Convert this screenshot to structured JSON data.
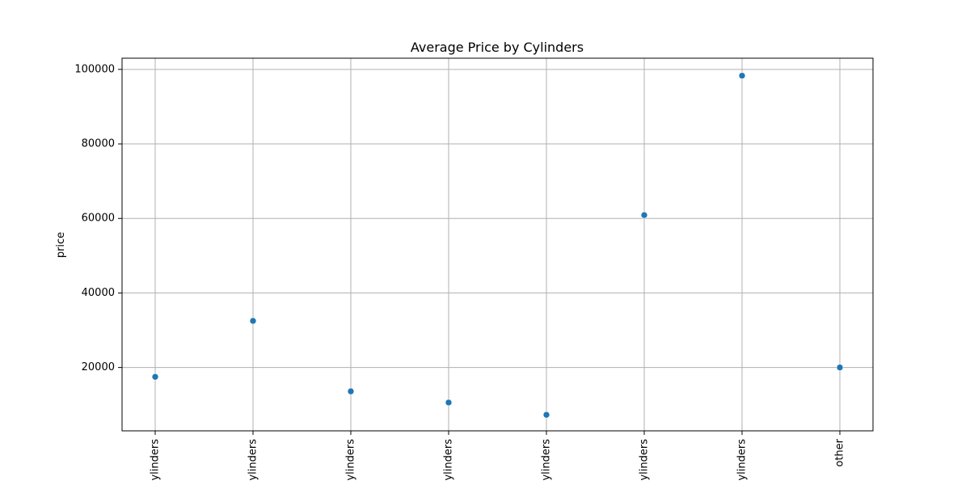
{
  "chart_data": {
    "type": "scatter",
    "title": "Average Price by Cylinders",
    "xlabel": "",
    "ylabel": "price",
    "categories": [
      "ylinders",
      "ylinders",
      "ylinders",
      "ylinders",
      "ylinders",
      "ylinders",
      "ylinders",
      "other"
    ],
    "values": [
      17500,
      32500,
      13600,
      10600,
      7300,
      60900,
      98300,
      20000
    ],
    "ylim": [
      3000,
      103000
    ],
    "yticks": [
      20000,
      40000,
      60000,
      80000,
      100000
    ],
    "ytick_labels": [
      "20000",
      "40000",
      "60000",
      "80000",
      "100000"
    ],
    "grid": true,
    "colors": {
      "marker": "#1f77b4",
      "grid": "#b0b0b0",
      "axis": "#000000"
    }
  }
}
